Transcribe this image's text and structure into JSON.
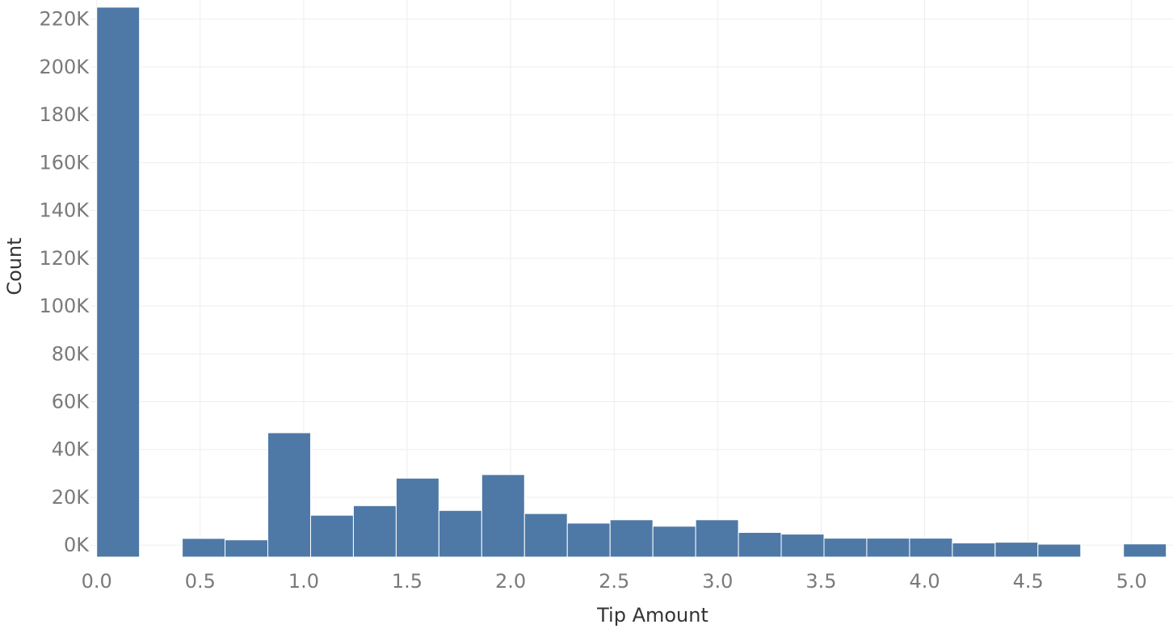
{
  "chart_data": {
    "type": "bar",
    "title": "",
    "xlabel": "Tip Amount",
    "ylabel": "Count",
    "bin_width": 0.2067,
    "bins": [
      {
        "x_start": 0.0,
        "x_end": 0.2067,
        "count": 225000
      },
      {
        "x_start": 0.2067,
        "x_end": 0.4134,
        "count": 0
      },
      {
        "x_start": 0.4134,
        "x_end": 0.6201,
        "count": 2800
      },
      {
        "x_start": 0.6201,
        "x_end": 0.8268,
        "count": 2200
      },
      {
        "x_start": 0.8268,
        "x_end": 1.0335,
        "count": 47000
      },
      {
        "x_start": 1.0335,
        "x_end": 1.2402,
        "count": 12500
      },
      {
        "x_start": 1.2402,
        "x_end": 1.4469,
        "count": 16500
      },
      {
        "x_start": 1.4469,
        "x_end": 1.6536,
        "count": 28000
      },
      {
        "x_start": 1.6536,
        "x_end": 1.8603,
        "count": 14500
      },
      {
        "x_start": 1.8603,
        "x_end": 2.067,
        "count": 29500
      },
      {
        "x_start": 2.067,
        "x_end": 2.2737,
        "count": 13200
      },
      {
        "x_start": 2.2737,
        "x_end": 2.4804,
        "count": 9200
      },
      {
        "x_start": 2.4804,
        "x_end": 2.6871,
        "count": 10600
      },
      {
        "x_start": 2.6871,
        "x_end": 2.8938,
        "count": 7900
      },
      {
        "x_start": 2.8938,
        "x_end": 3.1005,
        "count": 10600
      },
      {
        "x_start": 3.1005,
        "x_end": 3.3072,
        "count": 5300
      },
      {
        "x_start": 3.3072,
        "x_end": 3.5139,
        "count": 4600
      },
      {
        "x_start": 3.5139,
        "x_end": 3.7206,
        "count": 2900
      },
      {
        "x_start": 3.7206,
        "x_end": 3.9273,
        "count": 2900
      },
      {
        "x_start": 3.9273,
        "x_end": 4.134,
        "count": 2900
      },
      {
        "x_start": 4.134,
        "x_end": 4.3407,
        "count": 900
      },
      {
        "x_start": 4.3407,
        "x_end": 4.5474,
        "count": 1200
      },
      {
        "x_start": 4.5474,
        "x_end": 4.7541,
        "count": 400
      },
      {
        "x_start": 4.7541,
        "x_end": 4.9608,
        "count": 0
      },
      {
        "x_start": 4.9608,
        "x_end": 5.1675,
        "count": 500
      }
    ],
    "xlim": [
      -0.03,
      5.2
    ],
    "ylim": [
      -5000,
      228000
    ],
    "x_ticks": [
      0.0,
      0.5,
      1.0,
      1.5,
      2.0,
      2.5,
      3.0,
      3.5,
      4.0,
      4.5,
      5.0
    ],
    "x_tick_labels": [
      "0.0",
      "0.5",
      "1.0",
      "1.5",
      "2.0",
      "2.5",
      "3.0",
      "3.5",
      "4.0",
      "4.5",
      "5.0"
    ],
    "y_ticks": [
      0,
      20000,
      40000,
      60000,
      80000,
      100000,
      120000,
      140000,
      160000,
      180000,
      200000,
      220000
    ],
    "y_tick_labels": [
      "0K",
      "20K",
      "40K",
      "60K",
      "80K",
      "100K",
      "120K",
      "140K",
      "160K",
      "180K",
      "200K",
      "220K"
    ],
    "grid": true,
    "legend": "none",
    "colors": {
      "bar": "#4e79a7",
      "grid": "#eeeeee",
      "tick_label": "#7a7a7a",
      "axis_title": "#333333"
    }
  }
}
